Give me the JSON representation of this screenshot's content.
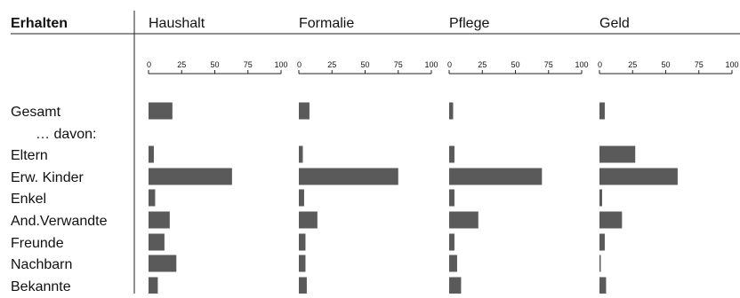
{
  "chart_data": {
    "type": "bar",
    "orientation": "horizontal",
    "header_label": "Erhalten",
    "subheader_label": "… davon:",
    "categories": [
      "Gesamt",
      "Eltern",
      "Erw. Kinder",
      "Enkel",
      "And.Verwandte",
      "Freunde",
      "Nachbarn",
      "Bekannte"
    ],
    "xlim": [
      0,
      100
    ],
    "xticks": [
      0,
      25,
      50,
      75,
      100
    ],
    "grid": false,
    "legend": "none",
    "bar_color": "#5a5a5a",
    "panels": [
      {
        "title": "Haushalt",
        "values": [
          18,
          4,
          63,
          5,
          16,
          12,
          21,
          7
        ]
      },
      {
        "title": "Formalie",
        "values": [
          8,
          3,
          75,
          4,
          14,
          5,
          5,
          6
        ]
      },
      {
        "title": "Pflege",
        "values": [
          3,
          4,
          70,
          4,
          22,
          4,
          6,
          9
        ]
      },
      {
        "title": "Geld",
        "values": [
          4,
          27,
          59,
          2,
          17,
          4,
          1,
          5
        ]
      }
    ]
  }
}
